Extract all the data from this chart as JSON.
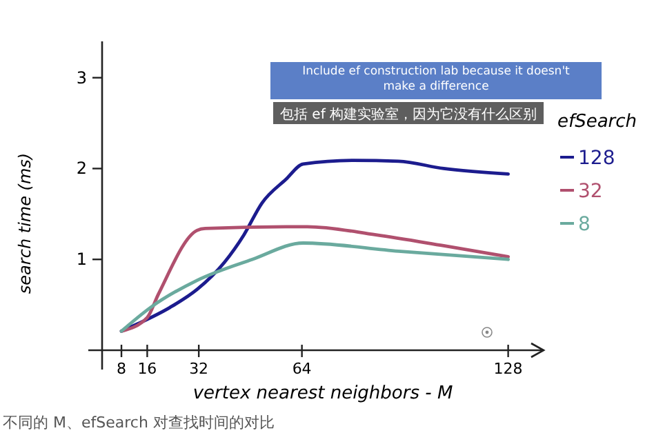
{
  "chart_data": {
    "type": "line",
    "xlabel": "vertex nearest neighbors - M",
    "ylabel": "search time (ms)",
    "legend_title": "efSearch",
    "legend": "right",
    "marker": "none",
    "line_style": "solid",
    "grid": false,
    "xlim": [
      2,
      139
    ],
    "xticks": [
      8,
      16,
      32,
      64,
      128
    ],
    "ylim": [
      0,
      3.4
    ],
    "yticks": [
      1,
      2,
      3
    ],
    "series": [
      {
        "name": "128",
        "color": "#1c1c8e",
        "x": [
          8,
          13,
          23,
          31.5,
          40,
          46,
          51.6,
          59,
          64.4,
          80,
          94,
          108,
          128
        ],
        "values": [
          0.21,
          0.29,
          0.47,
          0.67,
          0.97,
          1.27,
          1.62,
          1.88,
          2.05,
          2.09,
          2.08,
          2.0,
          1.94
        ]
      },
      {
        "name": "32",
        "color": "#b0506e",
        "x": [
          8,
          16,
          19.5,
          31.5,
          34,
          59,
          65.7,
          87,
          108,
          128
        ],
        "values": [
          0.21,
          0.36,
          0.62,
          1.32,
          1.34,
          1.36,
          1.36,
          1.27,
          1.15,
          1.03
        ]
      },
      {
        "name": "8",
        "color": "#6aaa9e",
        "x": [
          8,
          17,
          31.5,
          48.6,
          64.4,
          94,
          128
        ],
        "values": [
          0.21,
          0.47,
          0.77,
          1.0,
          1.18,
          1.09,
          1.0
        ]
      }
    ],
    "annotations": [
      "Include ef construction lab because it doesn't make a difference",
      "包括 ef 构建实验室，因为它没有什么区别",
      "不同的 M、efSearch 对查找时间的对比"
    ]
  }
}
